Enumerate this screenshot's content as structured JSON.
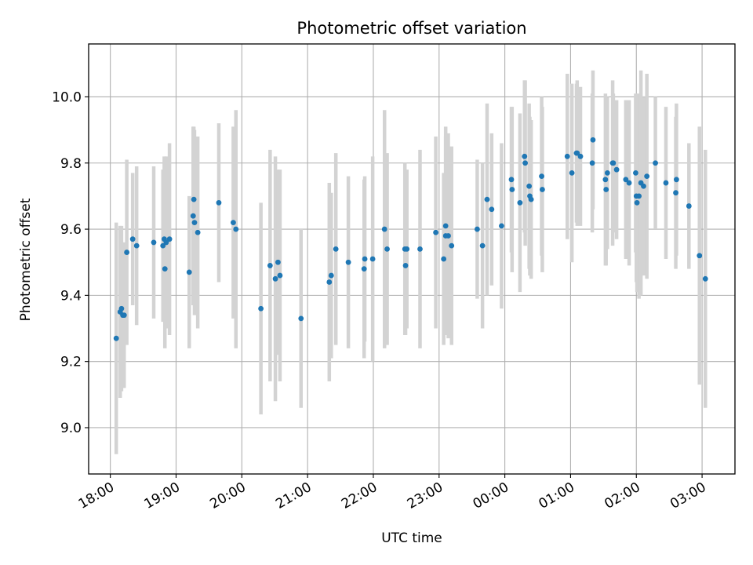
{
  "chart_data": {
    "type": "scatter",
    "title": "Photometric offset variation",
    "xlabel": "UTC time",
    "ylabel": "Photometric offset",
    "x_unit": "hours (UTC, continuing past midnight)",
    "xlim": [
      17.67,
      27.5
    ],
    "ylim": [
      8.86,
      10.16
    ],
    "x_ticks": [
      18,
      19,
      20,
      21,
      22,
      23,
      24,
      25,
      26,
      27
    ],
    "x_tick_labels": [
      "18:00",
      "19:00",
      "20:00",
      "21:00",
      "22:00",
      "23:00",
      "00:00",
      "01:00",
      "02:00",
      "03:00"
    ],
    "y_ticks": [
      9.0,
      9.2,
      9.4,
      9.6,
      9.8,
      10.0
    ],
    "y_tick_labels": [
      "9.0",
      "9.2",
      "9.4",
      "9.6",
      "9.8",
      "10.0"
    ],
    "grid": true,
    "point_color": "#1f77b4",
    "errorbar_color": "#d3d3d3",
    "series": [
      {
        "points": [
          [
            18.09,
            9.27,
            0.35
          ],
          [
            18.15,
            9.35,
            0.26
          ],
          [
            18.17,
            9.36,
            0.25
          ],
          [
            18.19,
            9.34,
            0.22
          ],
          [
            18.21,
            9.34,
            0.22
          ],
          [
            18.25,
            9.53,
            0.28
          ],
          [
            18.34,
            9.57,
            0.2
          ],
          [
            18.4,
            9.55,
            0.24
          ],
          [
            18.66,
            9.56,
            0.23
          ],
          [
            18.8,
            9.55,
            0.23
          ],
          [
            18.82,
            9.57,
            0.25
          ],
          [
            18.83,
            9.48,
            0.24
          ],
          [
            18.85,
            9.56,
            0.26
          ],
          [
            18.9,
            9.57,
            0.29
          ],
          [
            19.2,
            9.47,
            0.23
          ],
          [
            19.26,
            9.64,
            0.27
          ],
          [
            19.27,
            9.69,
            0.22
          ],
          [
            19.28,
            9.62,
            0.28
          ],
          [
            19.33,
            9.59,
            0.29
          ],
          [
            19.65,
            9.68,
            0.24
          ],
          [
            19.87,
            9.62,
            0.29
          ],
          [
            19.91,
            9.6,
            0.36
          ],
          [
            20.29,
            9.36,
            0.32
          ],
          [
            20.43,
            9.49,
            0.35
          ],
          [
            20.51,
            9.45,
            0.37
          ],
          [
            20.55,
            9.5,
            0.28
          ],
          [
            20.58,
            9.46,
            0.32
          ],
          [
            20.9,
            9.33,
            0.27
          ],
          [
            21.33,
            9.44,
            0.3
          ],
          [
            21.36,
            9.46,
            0.25
          ],
          [
            21.43,
            9.54,
            0.29
          ],
          [
            21.62,
            9.5,
            0.26
          ],
          [
            21.86,
            9.48,
            0.27
          ],
          [
            21.87,
            9.51,
            0.25
          ],
          [
            21.99,
            9.51,
            0.31
          ],
          [
            22.17,
            9.6,
            0.36
          ],
          [
            22.21,
            9.54,
            0.29
          ],
          [
            22.48,
            9.54,
            0.26
          ],
          [
            22.49,
            9.49,
            0.21
          ],
          [
            22.51,
            9.54,
            0.24
          ],
          [
            22.71,
            9.54,
            0.3
          ],
          [
            22.95,
            9.59,
            0.29
          ],
          [
            23.07,
            9.51,
            0.26
          ],
          [
            23.1,
            9.61,
            0.3
          ],
          [
            23.1,
            9.58,
            0.3
          ],
          [
            23.14,
            9.58,
            0.31
          ],
          [
            23.19,
            9.55,
            0.3
          ],
          [
            23.58,
            9.6,
            0.21
          ],
          [
            23.66,
            9.55,
            0.25
          ],
          [
            23.73,
            9.69,
            0.29
          ],
          [
            23.8,
            9.66,
            0.23
          ],
          [
            23.95,
            9.61,
            0.25
          ],
          [
            24.1,
            9.75,
            0.22
          ],
          [
            24.11,
            9.72,
            0.25
          ],
          [
            24.23,
            9.68,
            0.27
          ],
          [
            24.3,
            9.82,
            0.23
          ],
          [
            24.31,
            9.8,
            0.25
          ],
          [
            24.37,
            9.73,
            0.25
          ],
          [
            24.38,
            9.7,
            0.24
          ],
          [
            24.4,
            9.69,
            0.24
          ],
          [
            24.56,
            9.76,
            0.24
          ],
          [
            24.57,
            9.72,
            0.25
          ],
          [
            24.95,
            9.82,
            0.25
          ],
          [
            25.02,
            9.77,
            0.27
          ],
          [
            25.09,
            9.83,
            0.21
          ],
          [
            25.1,
            9.83,
            0.22
          ],
          [
            25.15,
            9.82,
            0.21
          ],
          [
            25.33,
            9.8,
            0.21
          ],
          [
            25.34,
            9.87,
            0.21
          ],
          [
            25.53,
            9.75,
            0.26
          ],
          [
            25.54,
            9.72,
            0.23
          ],
          [
            25.56,
            9.77,
            0.23
          ],
          [
            25.64,
            9.8,
            0.25
          ],
          [
            25.65,
            9.8,
            0.21
          ],
          [
            25.7,
            9.78,
            0.21
          ],
          [
            25.84,
            9.75,
            0.24
          ],
          [
            25.89,
            9.74,
            0.25
          ],
          [
            25.99,
            9.77,
            0.24
          ],
          [
            26.0,
            9.7,
            0.26
          ],
          [
            26.01,
            9.68,
            0.27
          ],
          [
            26.04,
            9.7,
            0.31
          ],
          [
            26.07,
            9.74,
            0.34
          ],
          [
            26.11,
            9.73,
            0.27
          ],
          [
            26.16,
            9.76,
            0.31
          ],
          [
            26.29,
            9.8,
            0.2
          ],
          [
            26.45,
            9.74,
            0.23
          ],
          [
            26.6,
            9.71,
            0.23
          ],
          [
            26.61,
            9.75,
            0.23
          ],
          [
            26.8,
            9.67,
            0.19
          ],
          [
            26.96,
            9.52,
            0.39
          ],
          [
            27.05,
            9.45,
            0.39
          ]
        ]
      }
    ]
  }
}
